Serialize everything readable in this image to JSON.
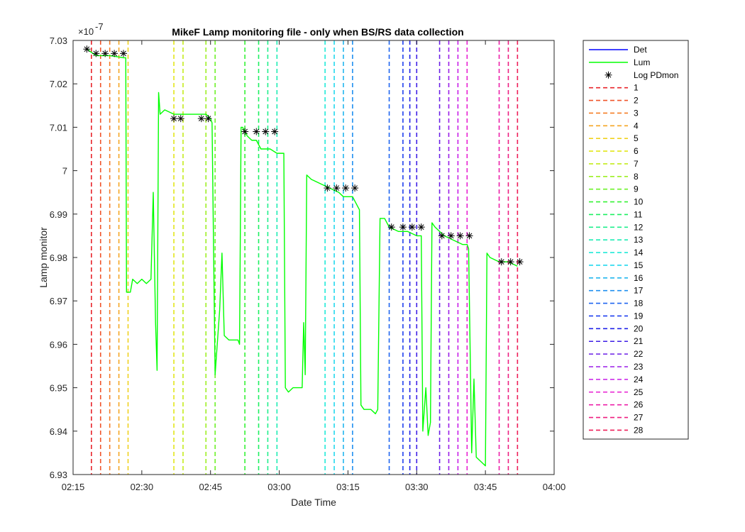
{
  "chart_data": {
    "type": "line",
    "title": "MikeF Lamp monitoring file - only when BS/RS data collection",
    "xlabel": "Date Time",
    "ylabel": "Lamp monitor",
    "y_exponent_label": "×10",
    "y_exponent_power": "-7",
    "xlim": [
      "02:15",
      "04:00"
    ],
    "ylim": [
      6.93,
      7.03
    ],
    "x_ticks": [
      "02:15",
      "02:30",
      "02:45",
      "03:00",
      "03:15",
      "03:30",
      "03:45",
      "04:00"
    ],
    "y_ticks": [
      "6.93",
      "6.94",
      "6.95",
      "6.96",
      "6.97",
      "6.98",
      "6.99",
      "7",
      "7.01",
      "7.02",
      "7.03"
    ],
    "grid": false,
    "legend_position": "outside-right",
    "series": [
      {
        "name": "Det",
        "color": "#0000ff",
        "style": "solid",
        "points": []
      },
      {
        "name": "Lum",
        "color": "#00ff00",
        "style": "solid",
        "points": [
          [
            "02:18:00",
            7.028
          ],
          [
            "02:20:00",
            7.0265
          ],
          [
            "02:23:00",
            7.0265
          ],
          [
            "02:25:00",
            7.0262
          ],
          [
            "02:26:00",
            7.026
          ],
          [
            "02:26:30",
            7.026
          ],
          [
            "02:26:40",
            6.972
          ],
          [
            "02:27:30",
            6.972
          ],
          [
            "02:28:00",
            6.975
          ],
          [
            "02:29:00",
            6.974
          ],
          [
            "02:30:00",
            6.975
          ],
          [
            "02:31:00",
            6.974
          ],
          [
            "02:32:00",
            6.975
          ],
          [
            "02:32:30",
            6.995
          ],
          [
            "02:33:00",
            6.965
          ],
          [
            "02:33:20",
            6.954
          ],
          [
            "02:33:40",
            7.018
          ],
          [
            "02:34:00",
            7.013
          ],
          [
            "02:35:00",
            7.014
          ],
          [
            "02:37:00",
            7.013
          ],
          [
            "02:40:00",
            7.013
          ],
          [
            "02:42:00",
            7.013
          ],
          [
            "02:44:00",
            7.013
          ],
          [
            "02:45:00",
            7.012
          ],
          [
            "02:45:20",
            7.011
          ],
          [
            "02:46:00",
            6.953
          ],
          [
            "02:47:00",
            6.968
          ],
          [
            "02:47:30",
            6.981
          ],
          [
            "02:48:00",
            6.962
          ],
          [
            "02:49:00",
            6.961
          ],
          [
            "02:51:00",
            6.961
          ],
          [
            "02:51:20",
            6.96
          ],
          [
            "02:51:40",
            7.01
          ],
          [
            "02:52:00",
            7.01
          ],
          [
            "02:53:00",
            7.008
          ],
          [
            "02:54:00",
            7.007
          ],
          [
            "02:55:00",
            7.007
          ],
          [
            "02:56:00",
            7.005
          ],
          [
            "02:58:00",
            7.005
          ],
          [
            "02:59:30",
            7.004
          ],
          [
            "03:01:00",
            7.004
          ],
          [
            "03:01:20",
            6.95
          ],
          [
            "03:02:00",
            6.949
          ],
          [
            "03:03:00",
            6.95
          ],
          [
            "03:04:00",
            6.95
          ],
          [
            "03:05:00",
            6.95
          ],
          [
            "03:05:20",
            6.965
          ],
          [
            "03:05:40",
            6.953
          ],
          [
            "03:06:00",
            6.999
          ],
          [
            "03:07:00",
            6.998
          ],
          [
            "03:09:00",
            6.997
          ],
          [
            "03:11:00",
            6.996
          ],
          [
            "03:13:00",
            6.995
          ],
          [
            "03:14:00",
            6.994
          ],
          [
            "03:16:00",
            6.994
          ],
          [
            "03:17:00",
            6.992
          ],
          [
            "03:17:30",
            6.991
          ],
          [
            "03:17:50",
            6.946
          ],
          [
            "03:18:30",
            6.945
          ],
          [
            "03:19:00",
            6.945
          ],
          [
            "03:20:00",
            6.945
          ],
          [
            "03:21:00",
            6.944
          ],
          [
            "03:21:30",
            6.945
          ],
          [
            "03:22:00",
            6.989
          ],
          [
            "03:23:00",
            6.989
          ],
          [
            "03:24:00",
            6.987
          ],
          [
            "03:26:00",
            6.986
          ],
          [
            "03:28:00",
            6.986
          ],
          [
            "03:30:00",
            6.985
          ],
          [
            "03:31:00",
            6.985
          ],
          [
            "03:31:20",
            6.94
          ],
          [
            "03:32:00",
            6.95
          ],
          [
            "03:32:30",
            6.939
          ],
          [
            "03:33:00",
            6.942
          ],
          [
            "03:33:20",
            6.988
          ],
          [
            "03:34:00",
            6.987
          ],
          [
            "03:36:00",
            6.985
          ],
          [
            "03:38:00",
            6.984
          ],
          [
            "03:40:00",
            6.983
          ],
          [
            "03:41:00",
            6.983
          ],
          [
            "03:41:20",
            6.982
          ],
          [
            "03:42:00",
            6.935
          ],
          [
            "03:42:30",
            6.952
          ],
          [
            "03:43:00",
            6.934
          ],
          [
            "03:44:00",
            6.933
          ],
          [
            "03:45:00",
            6.932
          ],
          [
            "03:45:20",
            6.981
          ],
          [
            "03:46:00",
            6.98
          ],
          [
            "03:48:00",
            6.979
          ],
          [
            "03:50:00",
            6.979
          ],
          [
            "03:52:00",
            6.978
          ]
        ]
      },
      {
        "name": "Log PDmon",
        "color": "#000000",
        "style": "marker-asterisk",
        "points": [
          [
            "02:18:00",
            7.028
          ],
          [
            "02:20:00",
            7.027
          ],
          [
            "02:22:00",
            7.027
          ],
          [
            "02:24:00",
            7.027
          ],
          [
            "02:26:00",
            7.027
          ],
          [
            "02:37:00",
            7.012
          ],
          [
            "02:38:30",
            7.012
          ],
          [
            "02:43:00",
            7.012
          ],
          [
            "02:44:30",
            7.012
          ],
          [
            "02:52:30",
            7.009
          ],
          [
            "02:55:00",
            7.009
          ],
          [
            "02:57:00",
            7.009
          ],
          [
            "02:59:00",
            7.009
          ],
          [
            "03:10:30",
            6.996
          ],
          [
            "03:12:30",
            6.996
          ],
          [
            "03:14:30",
            6.996
          ],
          [
            "03:16:30",
            6.996
          ],
          [
            "03:24:30",
            6.987
          ],
          [
            "03:27:00",
            6.987
          ],
          [
            "03:29:00",
            6.987
          ],
          [
            "03:31:00",
            6.987
          ],
          [
            "03:35:30",
            6.985
          ],
          [
            "03:37:30",
            6.985
          ],
          [
            "03:39:30",
            6.985
          ],
          [
            "03:41:30",
            6.985
          ],
          [
            "03:48:30",
            6.979
          ],
          [
            "03:50:30",
            6.979
          ],
          [
            "03:52:30",
            6.979
          ]
        ]
      }
    ],
    "vlines": {
      "style": "dashed",
      "items": [
        {
          "name": "1",
          "x": "02:19:00",
          "color": "#e8232a"
        },
        {
          "name": "2",
          "x": "02:21:00",
          "color": "#f0542a"
        },
        {
          "name": "3",
          "x": "02:23:00",
          "color": "#f57d26"
        },
        {
          "name": "4",
          "x": "02:25:00",
          "color": "#f5a623"
        },
        {
          "name": "5",
          "x": "02:27:00",
          "color": "#f0d21e"
        },
        {
          "name": "6",
          "x": "02:37:00",
          "color": "#e2e619"
        },
        {
          "name": "7",
          "x": "02:39:00",
          "color": "#c4ec1c"
        },
        {
          "name": "8",
          "x": "02:44:00",
          "color": "#9cef22"
        },
        {
          "name": "9",
          "x": "02:46:00",
          "color": "#6ef12a"
        },
        {
          "name": "10",
          "x": "02:52:30",
          "color": "#35f235"
        },
        {
          "name": "11",
          "x": "02:55:30",
          "color": "#1cf060"
        },
        {
          "name": "12",
          "x": "02:57:30",
          "color": "#1fef8c"
        },
        {
          "name": "13",
          "x": "02:59:30",
          "color": "#1fedb5"
        },
        {
          "name": "14",
          "x": "03:10:00",
          "color": "#21ead8"
        },
        {
          "name": "15",
          "x": "03:12:00",
          "color": "#22d8ee"
        },
        {
          "name": "16",
          "x": "03:14:00",
          "color": "#22b6ee"
        },
        {
          "name": "17",
          "x": "03:16:00",
          "color": "#1f8ff0"
        },
        {
          "name": "18",
          "x": "03:24:00",
          "color": "#1f66f0"
        },
        {
          "name": "19",
          "x": "03:27:00",
          "color": "#1e3fef"
        },
        {
          "name": "20",
          "x": "03:28:30",
          "color": "#2023e8"
        },
        {
          "name": "21",
          "x": "03:30:00",
          "color": "#3e1ee6"
        },
        {
          "name": "22",
          "x": "03:35:00",
          "color": "#6a1fe6"
        },
        {
          "name": "23",
          "x": "03:37:00",
          "color": "#9a1de8"
        },
        {
          "name": "24",
          "x": "03:39:00",
          "color": "#c81de8"
        },
        {
          "name": "25",
          "x": "03:41:00",
          "color": "#e81fd2"
        },
        {
          "name": "26",
          "x": "03:48:00",
          "color": "#ec1fa8"
        },
        {
          "name": "27",
          "x": "03:50:00",
          "color": "#ee1f80"
        },
        {
          "name": "28",
          "x": "03:52:00",
          "color": "#ee1f58"
        }
      ]
    }
  }
}
